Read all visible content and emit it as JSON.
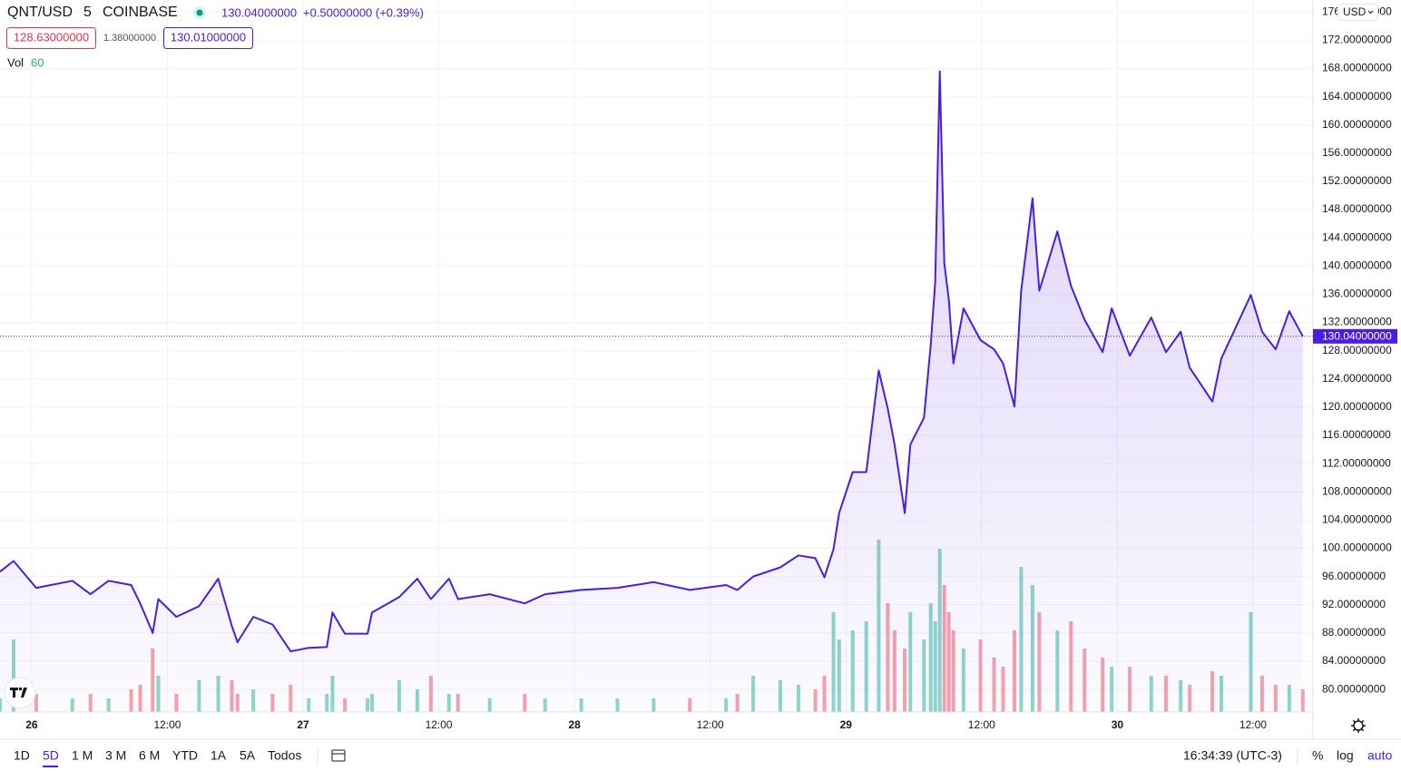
{
  "chart_data": {
    "type": "line",
    "x": [
      -2.8,
      -1.6,
      0.4,
      3.6,
      5.2,
      6.8,
      8.8,
      9.6,
      10.7,
      11.2,
      12.8,
      14.8,
      16.5,
      17.7,
      18.2,
      19.6,
      21.3,
      22.9,
      24.5,
      26.1,
      26.6,
      27.7,
      29.7,
      30.1,
      32.5,
      34.1,
      35.3,
      36.9,
      37.7,
      40.5,
      43.6,
      45.4,
      48.6,
      51.8,
      55.0,
      58.2,
      61.4,
      62.4,
      63.8,
      66.2,
      67.8,
      69.3,
      70.1,
      70.9,
      71.4,
      72.6,
      73.8,
      74.9,
      75.7,
      76.3,
      77.2,
      77.7,
      78.9,
      79.5,
      79.9,
      80.3,
      80.7,
      81.1,
      81.5,
      82.4,
      83.9,
      85.1,
      85.9,
      86.9,
      87.5,
      88.5,
      89.1,
      90.7,
      91.9,
      93.1,
      94.7,
      95.5,
      97.1,
      99.0,
      100.3,
      101.6,
      102.4,
      104.4,
      105.2,
      107.8,
      108.8,
      110.0,
      111.2,
      112.4
    ],
    "series": [
      {
        "name": "QNT/USD",
        "color": "#4a1ee0",
        "values": [
          96.7,
          98.2,
          94.4,
          95.4,
          93.5,
          95.4,
          94.8,
          92.2,
          88.0,
          92.8,
          90.3,
          91.8,
          95.7,
          89.0,
          86.7,
          90.3,
          89.2,
          85.4,
          85.9,
          86.0,
          90.9,
          87.9,
          87.9,
          90.9,
          93.1,
          95.7,
          92.8,
          95.7,
          92.8,
          93.5,
          92.2,
          93.5,
          94.1,
          94.4,
          95.2,
          94.1,
          94.8,
          94.1,
          96.0,
          97.3,
          99.0,
          98.6,
          95.9,
          99.9,
          105.0,
          110.8,
          110.8,
          125.2,
          119.8,
          114.7,
          105.0,
          114.7,
          118.5,
          128.8,
          137.8,
          167.6,
          140.4,
          135.2,
          126.2,
          134.0,
          129.5,
          128.2,
          126.2,
          120.1,
          136.5,
          149.6,
          136.5,
          144.9,
          137.2,
          132.4,
          127.8,
          134.0,
          127.3,
          132.7,
          127.8,
          130.7,
          125.6,
          120.8,
          126.9,
          135.9,
          130.7,
          128.2,
          133.6,
          130.04
        ]
      },
      {
        "name": "Vol",
        "axis": "y2",
        "color": "#26a69a",
        "values": [
          15,
          80,
          20,
          15,
          20,
          15,
          25,
          30,
          70,
          40,
          20,
          35,
          40,
          35,
          20,
          25,
          20,
          30,
          15,
          20,
          40,
          15,
          15,
          20,
          35,
          25,
          40,
          20,
          20,
          15,
          20,
          15,
          15,
          15,
          15,
          15,
          15,
          20,
          40,
          35,
          30,
          25,
          40,
          110,
          80,
          90,
          100,
          190,
          120,
          90,
          70,
          110,
          80,
          120,
          100,
          180,
          140,
          110,
          90,
          70,
          80,
          60,
          50,
          90,
          160,
          140,
          110,
          90,
          100,
          70,
          60,
          50,
          50,
          40,
          40,
          35,
          30,
          45,
          40,
          110,
          40,
          30,
          30,
          25
        ]
      }
    ],
    "xlim": [
      -2.8,
      113.3
    ],
    "xticks": [
      {
        "value": 0,
        "label": "26"
      },
      {
        "value": 12,
        "label": "12:00"
      },
      {
        "value": 24,
        "label": "27"
      },
      {
        "value": 36,
        "label": "12:00"
      },
      {
        "value": 48,
        "label": "28"
      },
      {
        "value": 60,
        "label": "12:00"
      },
      {
        "value": 72,
        "label": "29"
      },
      {
        "value": 84,
        "label": "12:00"
      },
      {
        "value": 96,
        "label": "30"
      },
      {
        "value": 108,
        "label": "12:00"
      }
    ],
    "ylim": [
      76.8,
      177.7
    ],
    "yticks": [
      {
        "value": 80,
        "label": "80.00000000"
      },
      {
        "value": 84,
        "label": "84.00000000"
      },
      {
        "value": 88,
        "label": "88.00000000"
      },
      {
        "value": 92,
        "label": "92.00000000"
      },
      {
        "value": 96,
        "label": "96.00000000"
      },
      {
        "value": 100,
        "label": "100.00000000"
      },
      {
        "value": 104,
        "label": "104.00000000"
      },
      {
        "value": 108,
        "label": "108.00000000"
      },
      {
        "value": 112,
        "label": "112.00000000"
      },
      {
        "value": 116,
        "label": "116.00000000"
      },
      {
        "value": 120,
        "label": "120.00000000"
      },
      {
        "value": 124,
        "label": "124.00000000"
      },
      {
        "value": 128,
        "label": "128.00000000"
      },
      {
        "value": 132,
        "label": "132.00000000"
      },
      {
        "value": 136,
        "label": "136.00000000"
      },
      {
        "value": 140,
        "label": "140.00000000"
      },
      {
        "value": 144,
        "label": "144.00000000"
      },
      {
        "value": 148,
        "label": "148.00000000"
      },
      {
        "value": 152,
        "label": "152.00000000"
      },
      {
        "value": 156,
        "label": "156.00000000"
      },
      {
        "value": 160,
        "label": "160.00000000"
      },
      {
        "value": 164,
        "label": "164.00000000"
      },
      {
        "value": 168,
        "label": "168.00000000"
      },
      {
        "value": 172,
        "label": "172.00000000"
      },
      {
        "value": 176,
        "label": "176.00000000"
      }
    ],
    "y2lim": [
      0,
      785
    ],
    "grid": true,
    "last_price": {
      "value": 130.04,
      "label": "130.04000000"
    }
  },
  "header": {
    "interval": "5",
    "exchange": "COINBASE",
    "last": "130.04000000",
    "change": "+0.50000000 (+0.39%)",
    "bid": "128.63000000",
    "spread": "1.38000000",
    "ask": "130.01000000",
    "vol_value": "60",
    "currency": "USD"
  },
  "toolbar": {
    "ranges": [
      "1D",
      "5D",
      "1 M",
      "3 M",
      "6 M",
      "YTD",
      "1A",
      "5A",
      "Todos"
    ],
    "clock": "16:34:39 (UTC-3)",
    "scale_buttons": [
      "%",
      "log",
      "auto"
    ]
  }
}
